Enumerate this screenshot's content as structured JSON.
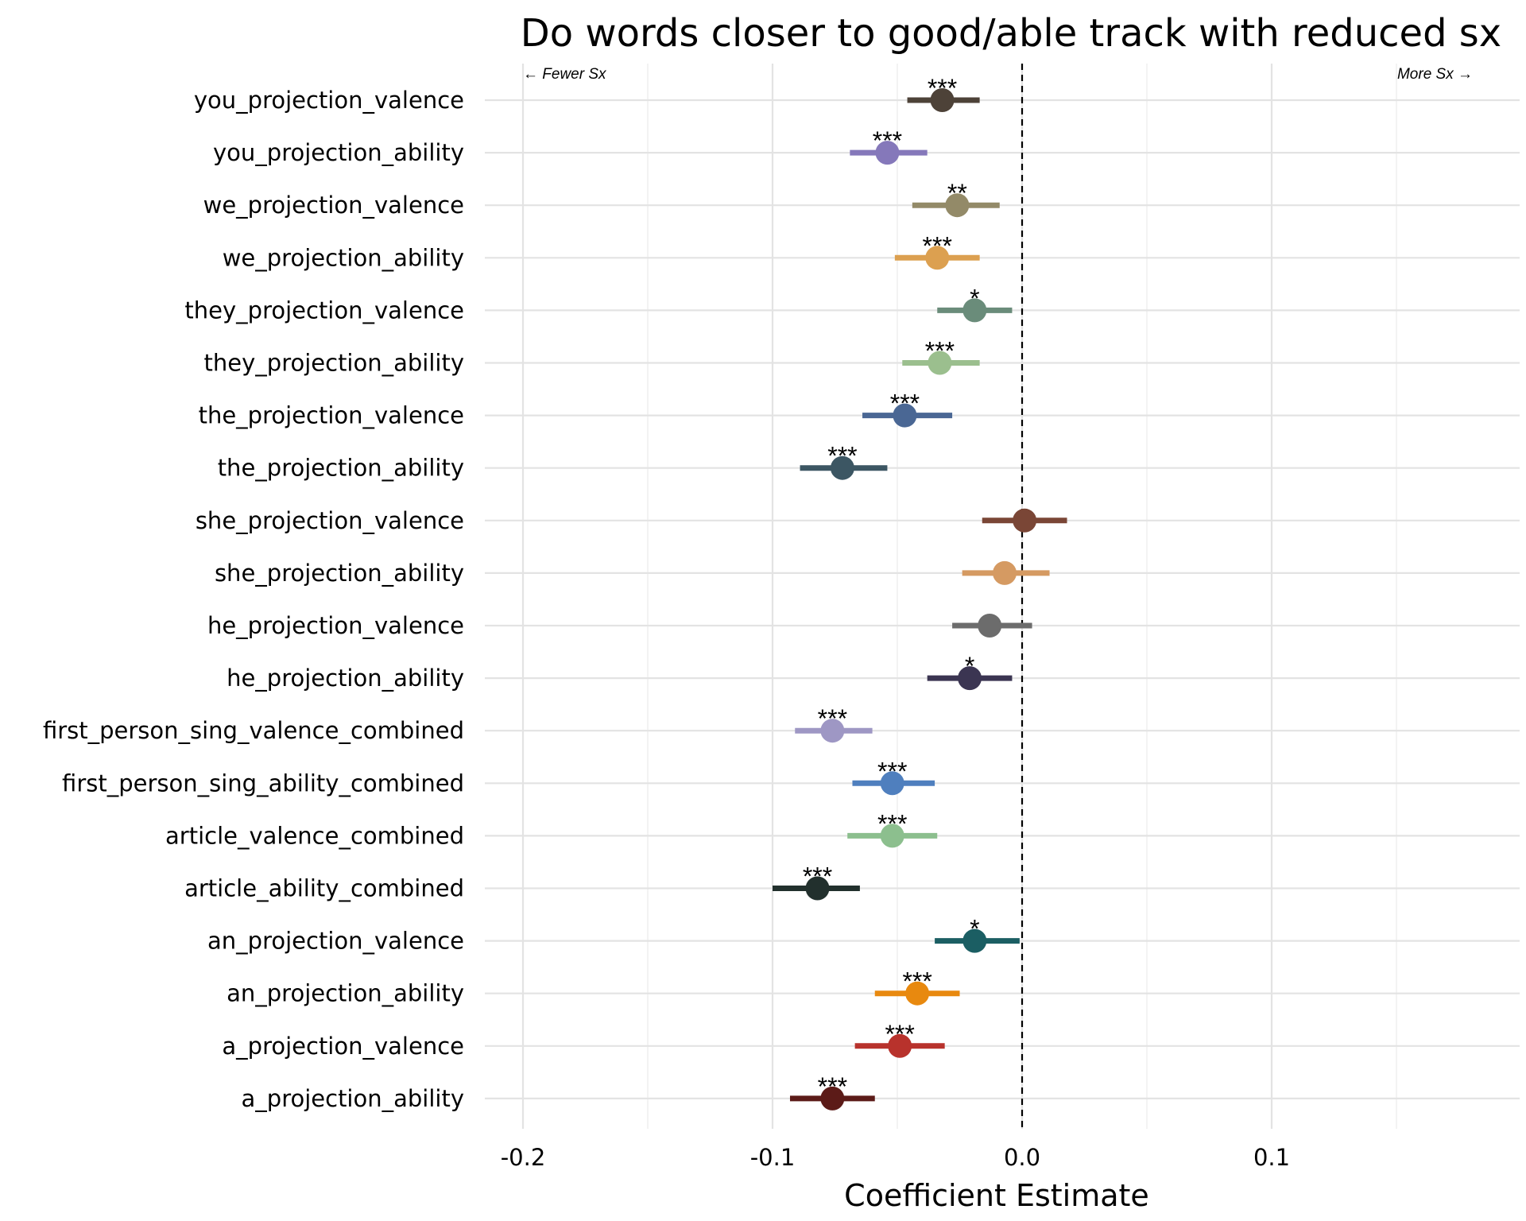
{
  "chart_data": {
    "type": "scatter",
    "title": "Do words closer to good/able track with reduced sx",
    "xlabel": "Coefficient Estimate",
    "ylabel": "",
    "xlim": [
      -0.22,
      0.2
    ],
    "xticks": [
      -0.2,
      -0.1,
      0.0,
      0.1
    ],
    "xtick_labels": [
      "-0.2",
      "-0.1",
      "0.0",
      "0.1"
    ],
    "reference_line": 0.0,
    "grid": true,
    "annotations": {
      "left": "← Fewer Sx",
      "right": "More Sx →"
    },
    "points": [
      {
        "label": "you_projection_valence",
        "estimate": -0.032,
        "ci": [
          -0.046,
          -0.017
        ],
        "sig": "***",
        "color": "#4d4238"
      },
      {
        "label": "you_projection_ability",
        "estimate": -0.054,
        "ci": [
          -0.069,
          -0.038
        ],
        "sig": "***",
        "color": "#8578ba"
      },
      {
        "label": "we_projection_valence",
        "estimate": -0.026,
        "ci": [
          -0.044,
          -0.009
        ],
        "sig": "**",
        "color": "#938a68"
      },
      {
        "label": "we_projection_ability",
        "estimate": -0.034,
        "ci": [
          -0.051,
          -0.017
        ],
        "sig": "***",
        "color": "#dca050"
      },
      {
        "label": "they_projection_valence",
        "estimate": -0.019,
        "ci": [
          -0.034,
          -0.004
        ],
        "sig": "*",
        "color": "#6a8c7a"
      },
      {
        "label": "they_projection_ability",
        "estimate": -0.033,
        "ci": [
          -0.048,
          -0.017
        ],
        "sig": "***",
        "color": "#9bbf8e"
      },
      {
        "label": "the_projection_valence",
        "estimate": -0.047,
        "ci": [
          -0.064,
          -0.028
        ],
        "sig": "***",
        "color": "#4a6794"
      },
      {
        "label": "the_projection_ability",
        "estimate": -0.072,
        "ci": [
          -0.089,
          -0.054
        ],
        "sig": "***",
        "color": "#3c5663"
      },
      {
        "label": "she_projection_valence",
        "estimate": 0.001,
        "ci": [
          -0.016,
          0.018
        ],
        "sig": "",
        "color": "#7a4636"
      },
      {
        "label": "she_projection_ability",
        "estimate": -0.007,
        "ci": [
          -0.024,
          0.011
        ],
        "sig": "",
        "color": "#d59a62"
      },
      {
        "label": "he_projection_valence",
        "estimate": -0.013,
        "ci": [
          -0.028,
          0.004
        ],
        "sig": "",
        "color": "#6c6c6c"
      },
      {
        "label": "he_projection_ability",
        "estimate": -0.021,
        "ci": [
          -0.038,
          -0.004
        ],
        "sig": "*",
        "color": "#3b3552"
      },
      {
        "label": "first_person_sing_valence_combined",
        "estimate": -0.076,
        "ci": [
          -0.091,
          -0.06
        ],
        "sig": "***",
        "color": "#9e97c4"
      },
      {
        "label": "first_person_sing_ability_combined",
        "estimate": -0.052,
        "ci": [
          -0.068,
          -0.035
        ],
        "sig": "***",
        "color": "#4f7fbe"
      },
      {
        "label": "article_valence_combined",
        "estimate": -0.052,
        "ci": [
          -0.07,
          -0.034
        ],
        "sig": "***",
        "color": "#8cbf8e"
      },
      {
        "label": "article_ability_combined",
        "estimate": -0.082,
        "ci": [
          -0.1,
          -0.065
        ],
        "sig": "***",
        "color": "#22302d"
      },
      {
        "label": "an_projection_valence",
        "estimate": -0.019,
        "ci": [
          -0.035,
          -0.001
        ],
        "sig": "*",
        "color": "#1b5e63"
      },
      {
        "label": "an_projection_ability",
        "estimate": -0.042,
        "ci": [
          -0.059,
          -0.025
        ],
        "sig": "***",
        "color": "#e8890f"
      },
      {
        "label": "a_projection_valence",
        "estimate": -0.049,
        "ci": [
          -0.067,
          -0.031
        ],
        "sig": "***",
        "color": "#b8322c"
      },
      {
        "label": "a_projection_ability",
        "estimate": -0.076,
        "ci": [
          -0.093,
          -0.059
        ],
        "sig": "***",
        "color": "#5c1b18"
      }
    ]
  }
}
